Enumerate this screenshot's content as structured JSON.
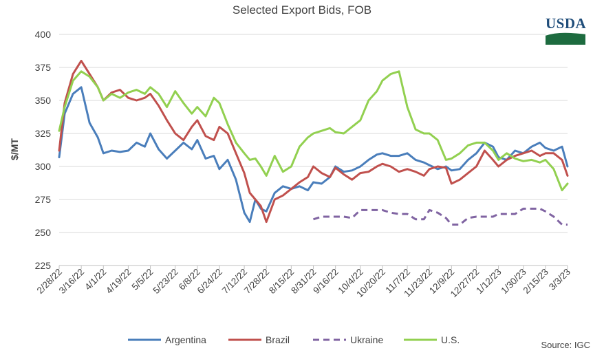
{
  "chart_data": {
    "type": "line",
    "title": "Selected Export Bids, FOB",
    "ylabel": "$/MT",
    "xlabel": "",
    "ylim": [
      225,
      400
    ],
    "yticks": [
      225,
      250,
      275,
      300,
      325,
      350,
      375,
      400
    ],
    "xlim": [
      "2/28/22",
      "3/3/23"
    ],
    "x_tick_labels": [
      "2/28/22",
      "3/16/22",
      "4/1/22",
      "4/19/22",
      "5/5/22",
      "5/23/22",
      "6/8/22",
      "6/24/22",
      "7/12/22",
      "7/28/22",
      "8/15/22",
      "8/31/22",
      "9/16/22",
      "10/4/22",
      "10/20/22",
      "11/7/22",
      "11/23/22",
      "12/9/22",
      "12/27/22",
      "1/12/23",
      "1/30/23",
      "2/15/23",
      "3/3/23"
    ],
    "grid": "horizontal",
    "legend_position": "bottom",
    "series": [
      {
        "name": "Argentina",
        "color": "#4a7ebb",
        "style": "solid",
        "x": [
          "2/28/22",
          "3/4/22",
          "3/10/22",
          "3/16/22",
          "3/22/22",
          "3/28/22",
          "4/1/22",
          "4/7/22",
          "4/13/22",
          "4/19/22",
          "4/25/22",
          "5/1/22",
          "5/5/22",
          "5/11/22",
          "5/17/22",
          "5/23/22",
          "5/29/22",
          "6/4/22",
          "6/8/22",
          "6/14/22",
          "6/20/22",
          "6/24/22",
          "6/30/22",
          "7/6/22",
          "7/12/22",
          "7/16/22",
          "7/20/22",
          "7/24/22",
          "7/28/22",
          "8/3/22",
          "8/9/22",
          "8/15/22",
          "8/21/22",
          "8/27/22",
          "8/31/22",
          "9/6/22",
          "9/12/22",
          "9/16/22",
          "9/22/22",
          "9/28/22",
          "10/4/22",
          "10/10/22",
          "10/16/22",
          "10/20/22",
          "10/26/22",
          "11/1/22",
          "11/7/22",
          "11/13/22",
          "11/19/22",
          "11/23/22",
          "11/29/22",
          "12/5/22",
          "12/9/22",
          "12/15/22",
          "12/21/22",
          "12/27/22",
          "1/2/23",
          "1/8/23",
          "1/12/23",
          "1/18/23",
          "1/24/23",
          "1/30/23",
          "2/5/23",
          "2/11/23",
          "2/15/23",
          "2/21/23",
          "2/27/23",
          "3/3/23"
        ],
        "values": [
          307,
          340,
          355,
          360,
          333,
          322,
          310,
          312,
          311,
          312,
          318,
          315,
          325,
          313,
          306,
          312,
          318,
          313,
          320,
          306,
          308,
          298,
          305,
          290,
          265,
          258,
          275,
          268,
          266,
          280,
          285,
          283,
          285,
          282,
          288,
          287,
          292,
          300,
          296,
          297,
          300,
          305,
          309,
          310,
          308,
          308,
          310,
          305,
          303,
          301,
          298,
          300,
          297,
          298,
          305,
          310,
          318,
          315,
          307,
          305,
          312,
          310,
          315,
          318,
          314,
          312,
          315,
          300
        ]
      },
      {
        "name": "Brazil",
        "color": "#c0504d",
        "style": "solid",
        "x": [
          "2/28/22",
          "3/4/22",
          "3/10/22",
          "3/16/22",
          "3/22/22",
          "3/28/22",
          "4/1/22",
          "4/7/22",
          "4/13/22",
          "4/19/22",
          "4/25/22",
          "5/1/22",
          "5/5/22",
          "5/11/22",
          "5/17/22",
          "5/23/22",
          "5/29/22",
          "6/4/22",
          "6/8/22",
          "6/14/22",
          "6/20/22",
          "6/24/22",
          "6/30/22",
          "7/6/22",
          "7/12/22",
          "7/16/22",
          "7/20/22",
          "7/24/22",
          "7/28/22",
          "8/3/22",
          "8/9/22",
          "8/15/22",
          "8/21/22",
          "8/27/22",
          "8/31/22",
          "9/6/22",
          "9/12/22",
          "9/16/22",
          "9/22/22",
          "9/28/22",
          "10/4/22",
          "10/10/22",
          "10/16/22",
          "10/20/22",
          "10/26/22",
          "11/1/22",
          "11/7/22",
          "11/13/22",
          "11/19/22",
          "11/23/22",
          "11/29/22",
          "12/5/22",
          "12/9/22",
          "12/15/22",
          "12/21/22",
          "12/27/22",
          "1/2/23",
          "1/8/23",
          "1/12/23",
          "1/18/23",
          "1/24/23",
          "1/30/23",
          "2/5/23",
          "2/11/23",
          "2/15/23",
          "2/21/23",
          "2/27/23",
          "3/3/23"
        ],
        "values": [
          312,
          348,
          370,
          380,
          370,
          360,
          350,
          356,
          358,
          352,
          350,
          352,
          355,
          346,
          335,
          325,
          320,
          330,
          335,
          323,
          320,
          330,
          325,
          310,
          295,
          280,
          275,
          270,
          258,
          275,
          278,
          283,
          288,
          292,
          300,
          295,
          292,
          299,
          294,
          290,
          295,
          296,
          300,
          302,
          300,
          296,
          298,
          296,
          293,
          298,
          300,
          299,
          287,
          290,
          295,
          300,
          312,
          305,
          300,
          305,
          308,
          310,
          312,
          308,
          310,
          310,
          305,
          293
        ]
      },
      {
        "name": "Ukraine",
        "color": "#8064a2",
        "style": "dashed",
        "x": [
          "8/31/22",
          "9/6/22",
          "9/12/22",
          "9/16/22",
          "9/22/22",
          "9/28/22",
          "10/4/22",
          "10/10/22",
          "10/16/22",
          "10/20/22",
          "10/26/22",
          "11/1/22",
          "11/7/22",
          "11/13/22",
          "11/19/22",
          "11/23/22",
          "11/29/22",
          "12/5/22",
          "12/9/22",
          "12/15/22",
          "12/21/22",
          "12/27/22",
          "1/2/23",
          "1/8/23",
          "1/12/23",
          "1/18/23",
          "1/24/23",
          "1/30/23",
          "2/5/23",
          "2/11/23",
          "2/15/23",
          "2/21/23",
          "2/27/23",
          "3/3/23"
        ],
        "values": [
          260,
          262,
          262,
          262,
          262,
          261,
          267,
          267,
          267,
          267,
          265,
          264,
          264,
          260,
          260,
          267,
          265,
          261,
          256,
          256,
          261,
          262,
          262,
          262,
          264,
          264,
          264,
          268,
          268,
          268,
          266,
          262,
          256,
          256
        ]
      },
      {
        "name": "U.S.",
        "color": "#92d050",
        "style": "solid",
        "x": [
          "2/28/22",
          "3/4/22",
          "3/10/22",
          "3/16/22",
          "3/22/22",
          "3/28/22",
          "4/1/22",
          "4/7/22",
          "4/13/22",
          "4/19/22",
          "4/25/22",
          "5/1/22",
          "5/5/22",
          "5/11/22",
          "5/17/22",
          "5/23/22",
          "5/29/22",
          "6/4/22",
          "6/8/22",
          "6/14/22",
          "6/20/22",
          "6/24/22",
          "6/30/22",
          "7/6/22",
          "7/12/22",
          "7/16/22",
          "7/20/22",
          "7/24/22",
          "7/28/22",
          "8/3/22",
          "8/9/22",
          "8/15/22",
          "8/21/22",
          "8/27/22",
          "8/31/22",
          "9/6/22",
          "9/12/22",
          "9/16/22",
          "9/22/22",
          "9/28/22",
          "10/4/22",
          "10/10/22",
          "10/16/22",
          "10/20/22",
          "10/26/22",
          "11/1/22",
          "11/7/22",
          "11/13/22",
          "11/19/22",
          "11/23/22",
          "11/29/22",
          "12/5/22",
          "12/9/22",
          "12/15/22",
          "12/21/22",
          "12/27/22",
          "1/2/23",
          "1/8/23",
          "1/12/23",
          "1/18/23",
          "1/24/23",
          "1/30/23",
          "2/5/23",
          "2/11/23",
          "2/15/23",
          "2/21/23",
          "2/27/23",
          "3/3/23"
        ],
        "values": [
          327,
          345,
          365,
          372,
          368,
          360,
          350,
          355,
          352,
          356,
          358,
          355,
          360,
          355,
          345,
          357,
          348,
          340,
          345,
          338,
          352,
          348,
          332,
          318,
          310,
          305,
          306,
          300,
          293,
          308,
          296,
          300,
          315,
          322,
          325,
          327,
          329,
          326,
          325,
          330,
          335,
          350,
          357,
          365,
          370,
          372,
          345,
          328,
          325,
          325,
          320,
          305,
          306,
          310,
          316,
          318,
          318,
          312,
          305,
          310,
          306,
          304,
          305,
          303,
          305,
          298,
          282,
          287
        ]
      }
    ]
  },
  "logo": {
    "text": "USDA"
  },
  "source_note": "Source: IGC"
}
